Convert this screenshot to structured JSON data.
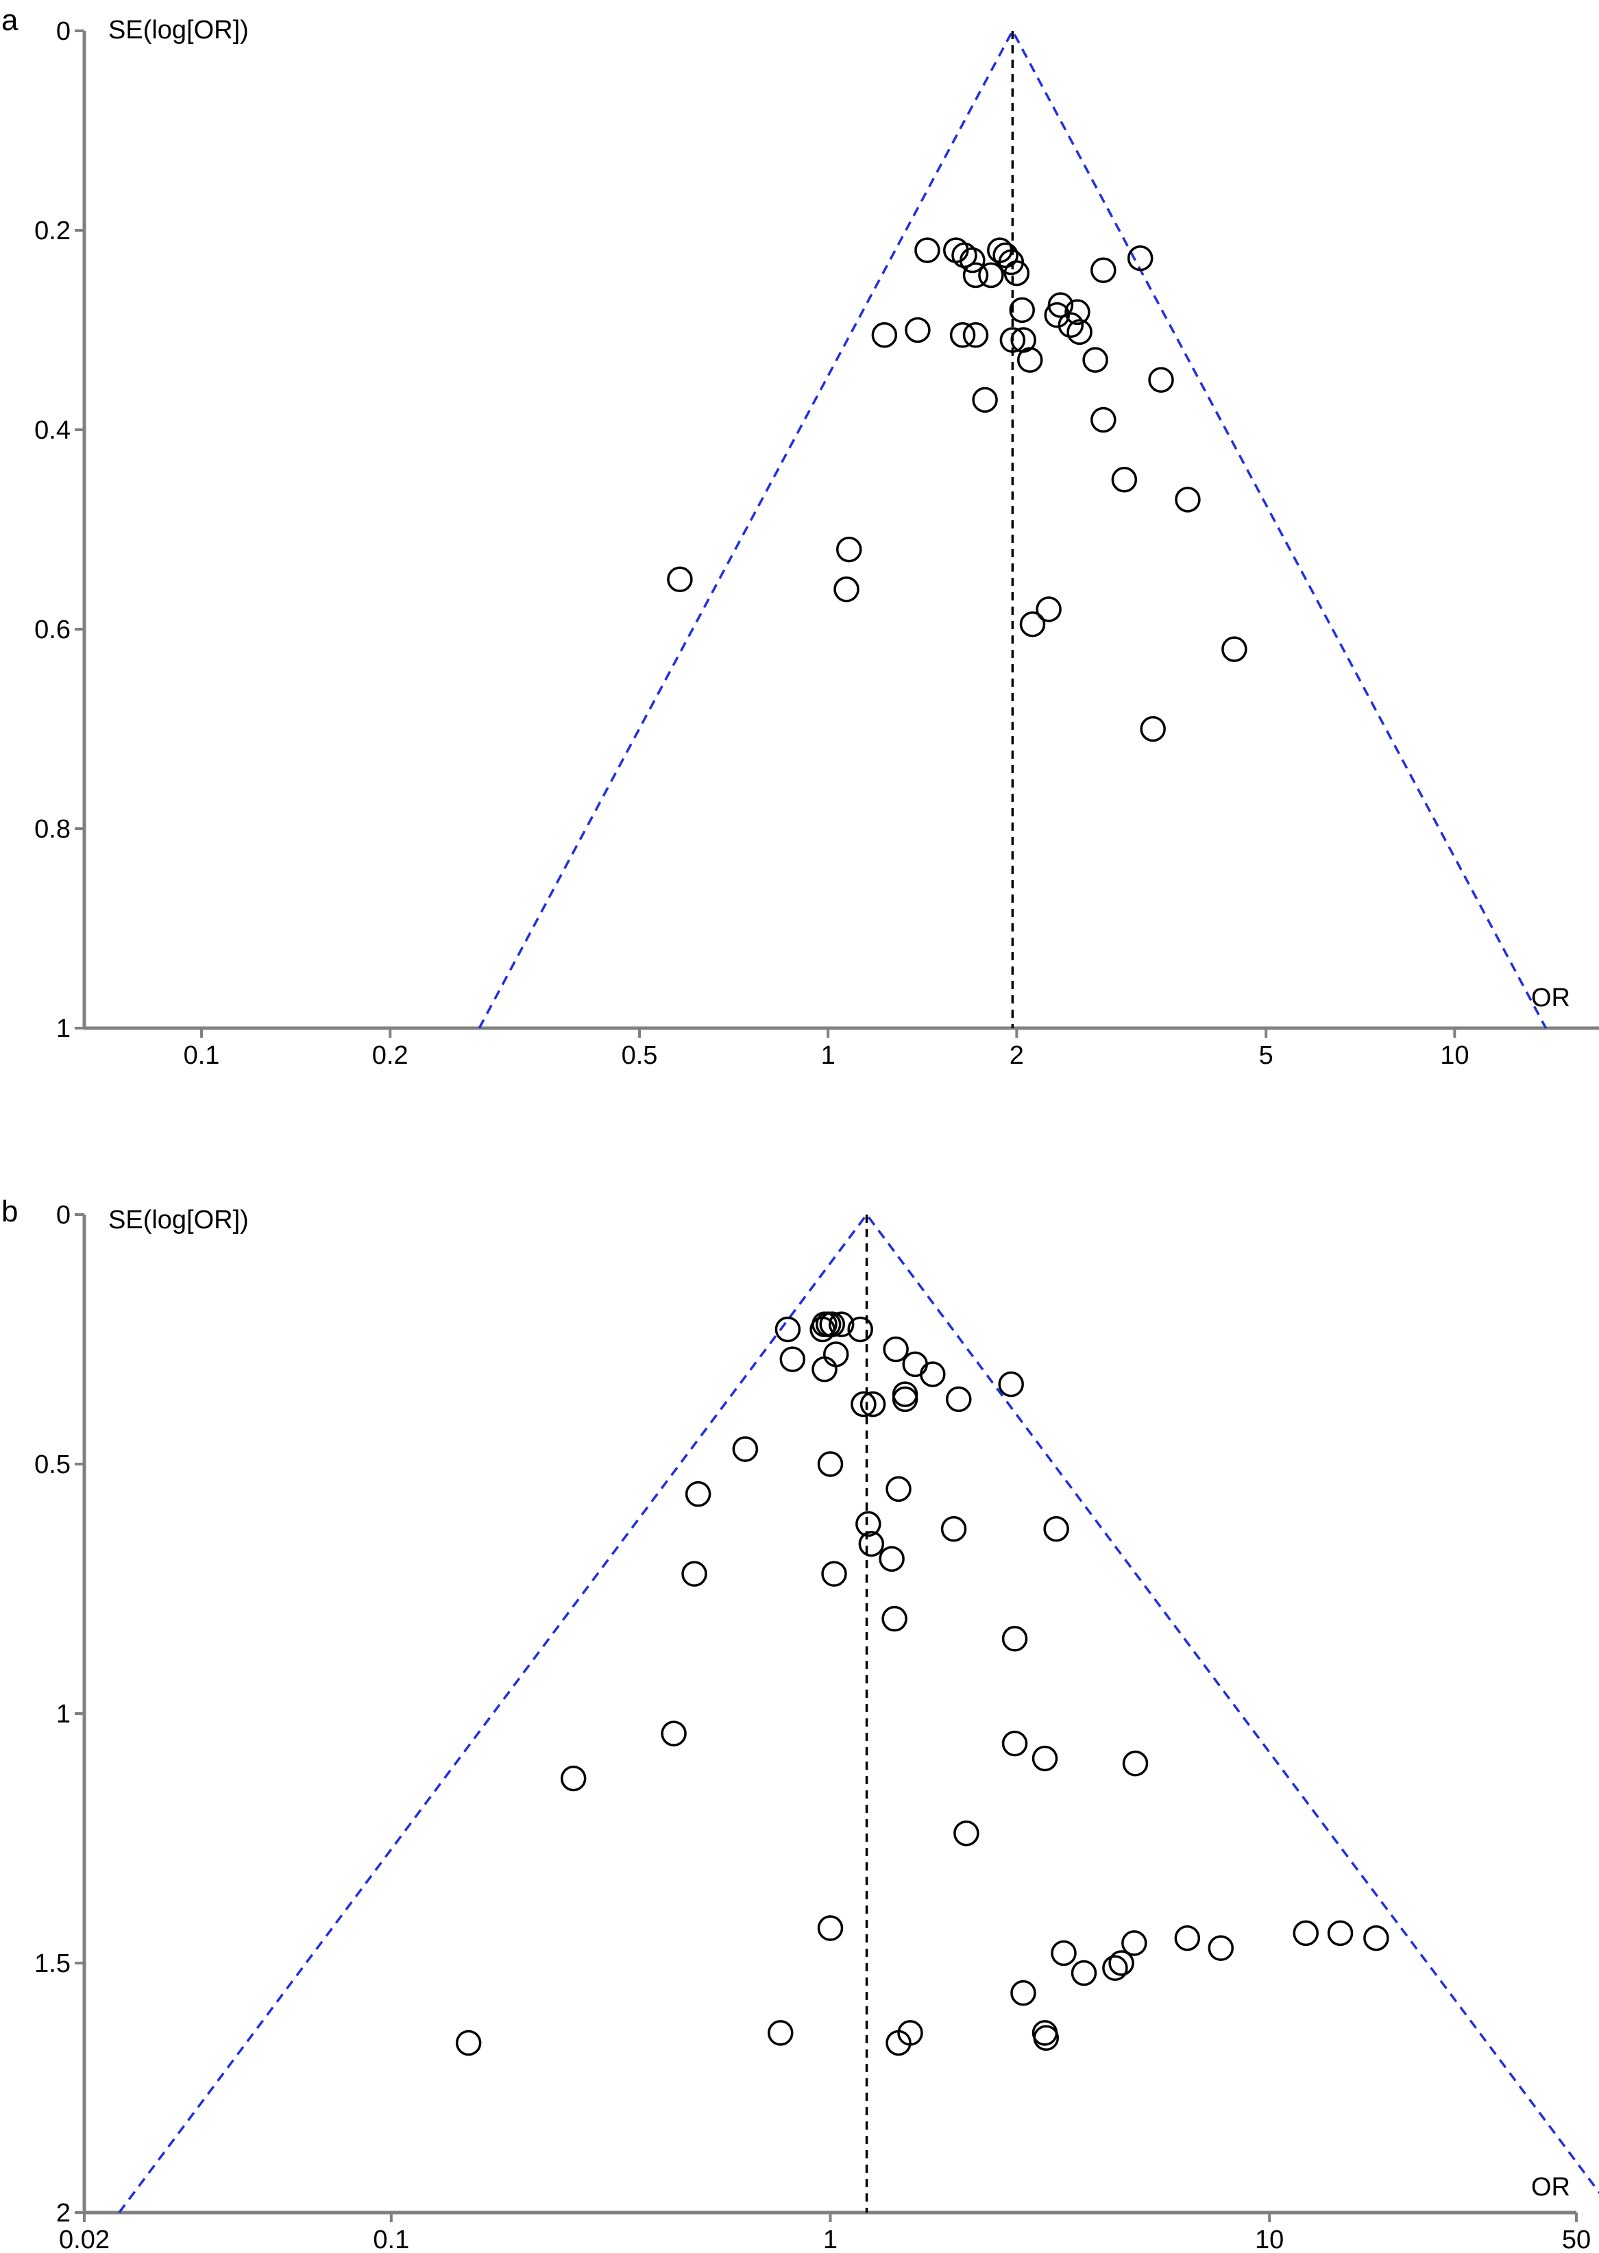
{
  "colors": {
    "axis": "#808080",
    "funnel": "#1f2fe0",
    "pooled_line": "#000000",
    "marker": "#000000",
    "background": "#ffffff"
  },
  "chart_data": [
    {
      "panel": "a",
      "type": "scatter",
      "subtype": "funnel plot",
      "ylabel": "SE(log[OR])",
      "xlabel": "OR",
      "x_scale": "log",
      "y_inverted": true,
      "xlim": [
        0.065,
        17
      ],
      "ylim": [
        0,
        1
      ],
      "x_ticks": [
        0.1,
        0.2,
        0.5,
        1,
        2,
        5,
        10
      ],
      "x_tick_labels": [
        "0.1",
        "0.2",
        "0.5",
        "1",
        "2",
        "5",
        "10"
      ],
      "y_ticks": [
        0,
        0.2,
        0.4,
        0.6,
        0.8,
        1
      ],
      "y_tick_labels": [
        "0",
        "0.2",
        "0.4",
        "0.6",
        "0.8",
        "1"
      ],
      "pooled_or": 1.97,
      "funnel": "95% pseudo-confidence limits (blue dashed)",
      "grid": false,
      "points": [
        {
          "x": 1.44,
          "y": 0.22
        },
        {
          "x": 1.6,
          "y": 0.22
        },
        {
          "x": 1.65,
          "y": 0.225
        },
        {
          "x": 1.7,
          "y": 0.23
        },
        {
          "x": 1.88,
          "y": 0.22
        },
        {
          "x": 1.92,
          "y": 0.225
        },
        {
          "x": 1.96,
          "y": 0.232
        },
        {
          "x": 2.0,
          "y": 0.243
        },
        {
          "x": 1.72,
          "y": 0.245
        },
        {
          "x": 1.82,
          "y": 0.245
        },
        {
          "x": 2.75,
          "y": 0.24
        },
        {
          "x": 3.15,
          "y": 0.228
        },
        {
          "x": 2.04,
          "y": 0.28
        },
        {
          "x": 2.35,
          "y": 0.275
        },
        {
          "x": 2.32,
          "y": 0.285
        },
        {
          "x": 2.5,
          "y": 0.282
        },
        {
          "x": 2.44,
          "y": 0.295
        },
        {
          "x": 2.52,
          "y": 0.302
        },
        {
          "x": 1.23,
          "y": 0.305
        },
        {
          "x": 1.39,
          "y": 0.3
        },
        {
          "x": 1.64,
          "y": 0.305
        },
        {
          "x": 1.72,
          "y": 0.305
        },
        {
          "x": 1.97,
          "y": 0.31
        },
        {
          "x": 2.05,
          "y": 0.31
        },
        {
          "x": 2.1,
          "y": 0.33
        },
        {
          "x": 2.67,
          "y": 0.33
        },
        {
          "x": 3.4,
          "y": 0.35
        },
        {
          "x": 1.78,
          "y": 0.37
        },
        {
          "x": 2.75,
          "y": 0.39
        },
        {
          "x": 2.97,
          "y": 0.45
        },
        {
          "x": 3.75,
          "y": 0.47
        },
        {
          "x": 1.08,
          "y": 0.52
        },
        {
          "x": 1.07,
          "y": 0.56
        },
        {
          "x": 0.58,
          "y": 0.55
        },
        {
          "x": 2.25,
          "y": 0.58
        },
        {
          "x": 2.12,
          "y": 0.595
        },
        {
          "x": 4.45,
          "y": 0.62
        },
        {
          "x": 3.3,
          "y": 0.7
        }
      ]
    },
    {
      "panel": "b",
      "type": "scatter",
      "subtype": "funnel plot",
      "ylabel": "SE(log[OR])",
      "xlabel": "OR",
      "x_scale": "log",
      "y_inverted": true,
      "xlim": [
        0.02,
        50
      ],
      "ylim": [
        0,
        2
      ],
      "x_ticks": [
        0.02,
        0.1,
        1,
        10,
        50
      ],
      "x_tick_labels": [
        "0.02",
        "0.1",
        "1",
        "10",
        "50"
      ],
      "y_ticks": [
        0,
        0.5,
        1,
        1.5,
        2
      ],
      "y_tick_labels": [
        "0",
        "0.5",
        "1",
        "1.5",
        "2"
      ],
      "pooled_or": 1.21,
      "funnel": "95% pseudo-confidence limits (blue dashed)",
      "grid": false,
      "points": [
        {
          "x": 0.8,
          "y": 0.23
        },
        {
          "x": 0.97,
          "y": 0.22
        },
        {
          "x": 0.99,
          "y": 0.22
        },
        {
          "x": 1.01,
          "y": 0.22
        },
        {
          "x": 1.06,
          "y": 0.22
        },
        {
          "x": 1.17,
          "y": 0.23
        },
        {
          "x": 0.96,
          "y": 0.23
        },
        {
          "x": 0.82,
          "y": 0.29
        },
        {
          "x": 1.03,
          "y": 0.28
        },
        {
          "x": 0.97,
          "y": 0.31
        },
        {
          "x": 1.41,
          "y": 0.27
        },
        {
          "x": 1.56,
          "y": 0.3
        },
        {
          "x": 1.71,
          "y": 0.32
        },
        {
          "x": 2.58,
          "y": 0.34
        },
        {
          "x": 1.48,
          "y": 0.36
        },
        {
          "x": 1.48,
          "y": 0.37
        },
        {
          "x": 1.19,
          "y": 0.38
        },
        {
          "x": 1.25,
          "y": 0.38
        },
        {
          "x": 1.96,
          "y": 0.37
        },
        {
          "x": 0.64,
          "y": 0.47
        },
        {
          "x": 1.0,
          "y": 0.5
        },
        {
          "x": 0.5,
          "y": 0.56
        },
        {
          "x": 1.43,
          "y": 0.55
        },
        {
          "x": 1.22,
          "y": 0.62
        },
        {
          "x": 1.91,
          "y": 0.63
        },
        {
          "x": 3.27,
          "y": 0.63
        },
        {
          "x": 1.24,
          "y": 0.66
        },
        {
          "x": 1.38,
          "y": 0.69
        },
        {
          "x": 0.49,
          "y": 0.72
        },
        {
          "x": 1.02,
          "y": 0.72
        },
        {
          "x": 1.4,
          "y": 0.81
        },
        {
          "x": 2.63,
          "y": 0.85
        },
        {
          "x": 0.44,
          "y": 1.04
        },
        {
          "x": 2.63,
          "y": 1.06
        },
        {
          "x": 3.08,
          "y": 1.09
        },
        {
          "x": 0.26,
          "y": 1.13
        },
        {
          "x": 4.95,
          "y": 1.1
        },
        {
          "x": 2.04,
          "y": 1.24
        },
        {
          "x": 1.0,
          "y": 1.43
        },
        {
          "x": 3.4,
          "y": 1.48
        },
        {
          "x": 3.78,
          "y": 1.52
        },
        {
          "x": 4.6,
          "y": 1.5
        },
        {
          "x": 4.92,
          "y": 1.46
        },
        {
          "x": 6.5,
          "y": 1.45
        },
        {
          "x": 7.75,
          "y": 1.47
        },
        {
          "x": 12.1,
          "y": 1.44
        },
        {
          "x": 14.5,
          "y": 1.44
        },
        {
          "x": 17.5,
          "y": 1.45
        },
        {
          "x": 4.45,
          "y": 1.51
        },
        {
          "x": 2.75,
          "y": 1.56
        },
        {
          "x": 0.15,
          "y": 1.66
        },
        {
          "x": 0.77,
          "y": 1.64
        },
        {
          "x": 1.43,
          "y": 1.66
        },
        {
          "x": 1.52,
          "y": 1.64
        },
        {
          "x": 3.08,
          "y": 1.64
        },
        {
          "x": 3.1,
          "y": 1.65
        }
      ]
    }
  ]
}
